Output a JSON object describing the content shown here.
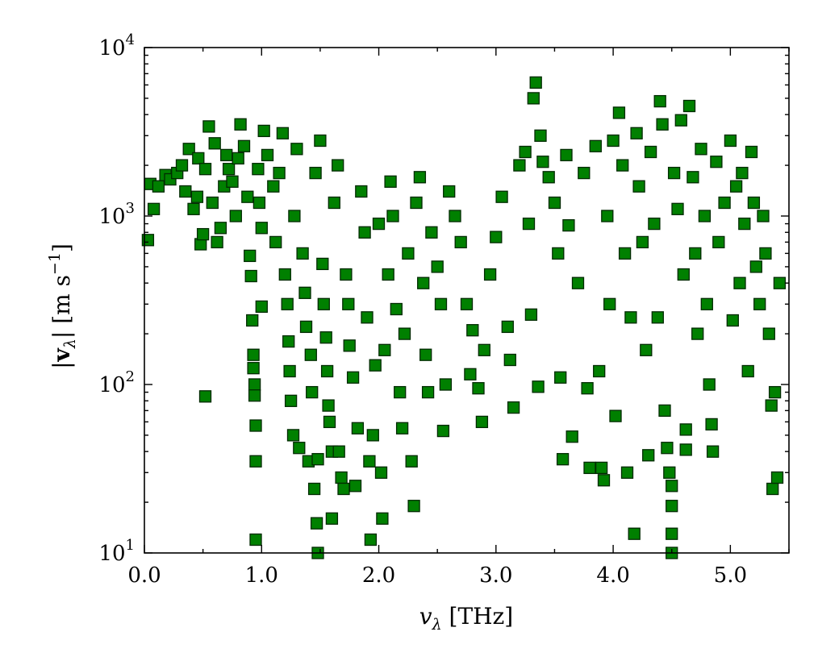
{
  "chart_data": {
    "type": "scatter",
    "title": "",
    "xlabel": {
      "main": "v",
      "sub": "λ",
      "unit": " [THz]"
    },
    "ylabel": {
      "open": "|",
      "main": "v",
      "sub": "λ",
      "close": "| [m s",
      "sup": "−1",
      "end": "]"
    },
    "xlim": [
      0.0,
      5.5
    ],
    "ylim": [
      10,
      10000
    ],
    "yscale": "log",
    "grid": false,
    "legend": "none",
    "marker": "square",
    "marker_color": "#008000",
    "marker_edge_color": "#002a00",
    "x_ticks": [
      {
        "value": 0.0,
        "label": "0.0"
      },
      {
        "value": 1.0,
        "label": "1.0"
      },
      {
        "value": 2.0,
        "label": "2.0"
      },
      {
        "value": 3.0,
        "label": "3.0"
      },
      {
        "value": 4.0,
        "label": "4.0"
      },
      {
        "value": 5.0,
        "label": "5.0"
      }
    ],
    "y_ticks": [
      {
        "value": 10,
        "base": "10",
        "exp": "1"
      },
      {
        "value": 100,
        "base": "10",
        "exp": "2"
      },
      {
        "value": 1000,
        "base": "10",
        "exp": "3"
      },
      {
        "value": 10000,
        "base": "10",
        "exp": "4"
      }
    ],
    "series": [
      {
        "values": [
          [
            0.03,
            720
          ],
          [
            0.08,
            1100
          ],
          [
            0.05,
            1550
          ],
          [
            0.12,
            1500
          ],
          [
            0.18,
            1750
          ],
          [
            0.22,
            1650
          ],
          [
            0.28,
            1800
          ],
          [
            0.32,
            2000
          ],
          [
            0.35,
            1400
          ],
          [
            0.38,
            2500
          ],
          [
            0.42,
            1100
          ],
          [
            0.45,
            1300
          ],
          [
            0.46,
            2200
          ],
          [
            0.48,
            680
          ],
          [
            0.5,
            780
          ],
          [
            0.52,
            1900
          ],
          [
            0.52,
            85
          ],
          [
            0.55,
            3400
          ],
          [
            0.58,
            1200
          ],
          [
            0.6,
            2700
          ],
          [
            0.62,
            700
          ],
          [
            0.65,
            850
          ],
          [
            0.68,
            1500
          ],
          [
            0.7,
            2300
          ],
          [
            0.72,
            1900
          ],
          [
            0.75,
            1600
          ],
          [
            0.78,
            1000
          ],
          [
            0.8,
            2200
          ],
          [
            0.82,
            3500
          ],
          [
            0.85,
            2600
          ],
          [
            0.88,
            1300
          ],
          [
            0.9,
            580
          ],
          [
            0.91,
            440
          ],
          [
            0.92,
            240
          ],
          [
            0.93,
            150
          ],
          [
            0.93,
            125
          ],
          [
            0.94,
            100
          ],
          [
            0.94,
            86
          ],
          [
            0.95,
            57
          ],
          [
            0.95,
            35
          ],
          [
            0.95,
            12
          ],
          [
            0.97,
            1900
          ],
          [
            0.98,
            1200
          ],
          [
            1.0,
            290
          ],
          [
            1.0,
            850
          ],
          [
            1.02,
            3200
          ],
          [
            1.05,
            2300
          ],
          [
            1.1,
            1500
          ],
          [
            1.12,
            700
          ],
          [
            1.15,
            1800
          ],
          [
            1.18,
            3100
          ],
          [
            1.2,
            450
          ],
          [
            1.22,
            300
          ],
          [
            1.23,
            180
          ],
          [
            1.24,
            120
          ],
          [
            1.25,
            80
          ],
          [
            1.27,
            50
          ],
          [
            1.28,
            1000
          ],
          [
            1.3,
            2500
          ],
          [
            1.32,
            42
          ],
          [
            1.35,
            600
          ],
          [
            1.37,
            350
          ],
          [
            1.38,
            220
          ],
          [
            1.4,
            35
          ],
          [
            1.42,
            150
          ],
          [
            1.43,
            90
          ],
          [
            1.45,
            24
          ],
          [
            1.46,
            1800
          ],
          [
            1.47,
            15
          ],
          [
            1.48,
            36
          ],
          [
            1.48,
            10
          ],
          [
            1.5,
            2800
          ],
          [
            1.52,
            520
          ],
          [
            1.53,
            300
          ],
          [
            1.55,
            190
          ],
          [
            1.56,
            120
          ],
          [
            1.57,
            75
          ],
          [
            1.58,
            60
          ],
          [
            1.6,
            40
          ],
          [
            1.6,
            16
          ],
          [
            1.62,
            1200
          ],
          [
            1.65,
            2000
          ],
          [
            1.66,
            40
          ],
          [
            1.68,
            28
          ],
          [
            1.7,
            24
          ],
          [
            1.72,
            450
          ],
          [
            1.74,
            300
          ],
          [
            1.75,
            170
          ],
          [
            1.78,
            110
          ],
          [
            1.8,
            25
          ],
          [
            1.82,
            55
          ],
          [
            1.85,
            1400
          ],
          [
            1.88,
            800
          ],
          [
            1.9,
            250
          ],
          [
            1.92,
            35
          ],
          [
            1.93,
            12
          ],
          [
            1.95,
            50
          ],
          [
            1.97,
            130
          ],
          [
            2.0,
            900
          ],
          [
            2.02,
            30
          ],
          [
            2.03,
            16
          ],
          [
            2.05,
            160
          ],
          [
            2.08,
            450
          ],
          [
            2.1,
            1600
          ],
          [
            2.12,
            1000
          ],
          [
            2.15,
            280
          ],
          [
            2.18,
            90
          ],
          [
            2.2,
            55
          ],
          [
            2.22,
            200
          ],
          [
            2.25,
            600
          ],
          [
            2.28,
            35
          ],
          [
            2.3,
            19
          ],
          [
            2.32,
            1200
          ],
          [
            2.35,
            1700
          ],
          [
            2.38,
            400
          ],
          [
            2.4,
            150
          ],
          [
            2.42,
            90
          ],
          [
            2.45,
            800
          ],
          [
            2.5,
            500
          ],
          [
            2.53,
            300
          ],
          [
            2.55,
            53
          ],
          [
            2.57,
            100
          ],
          [
            2.6,
            1400
          ],
          [
            2.65,
            1000
          ],
          [
            2.7,
            700
          ],
          [
            2.75,
            300
          ],
          [
            2.78,
            115
          ],
          [
            2.8,
            210
          ],
          [
            2.85,
            95
          ],
          [
            2.88,
            60
          ],
          [
            2.9,
            160
          ],
          [
            2.95,
            450
          ],
          [
            3.0,
            750
          ],
          [
            3.05,
            1300
          ],
          [
            3.1,
            220
          ],
          [
            3.12,
            140
          ],
          [
            3.15,
            73
          ],
          [
            3.2,
            2000
          ],
          [
            3.25,
            2400
          ],
          [
            3.28,
            900
          ],
          [
            3.3,
            260
          ],
          [
            3.32,
            5000
          ],
          [
            3.34,
            6200
          ],
          [
            3.36,
            97
          ],
          [
            3.38,
            3000
          ],
          [
            3.4,
            2100
          ],
          [
            3.45,
            1700
          ],
          [
            3.5,
            1200
          ],
          [
            3.53,
            600
          ],
          [
            3.55,
            110
          ],
          [
            3.57,
            36
          ],
          [
            3.6,
            2300
          ],
          [
            3.62,
            880
          ],
          [
            3.65,
            49
          ],
          [
            3.7,
            400
          ],
          [
            3.75,
            1800
          ],
          [
            3.78,
            95
          ],
          [
            3.8,
            32
          ],
          [
            3.85,
            2600
          ],
          [
            3.88,
            120
          ],
          [
            3.9,
            32
          ],
          [
            3.92,
            27
          ],
          [
            3.95,
            1000
          ],
          [
            3.97,
            300
          ],
          [
            4.0,
            2800
          ],
          [
            4.02,
            65
          ],
          [
            4.05,
            4100
          ],
          [
            4.08,
            2000
          ],
          [
            4.1,
            600
          ],
          [
            4.12,
            30
          ],
          [
            4.15,
            250
          ],
          [
            4.18,
            13
          ],
          [
            4.2,
            3100
          ],
          [
            4.22,
            1500
          ],
          [
            4.25,
            700
          ],
          [
            4.28,
            160
          ],
          [
            4.3,
            38
          ],
          [
            4.32,
            2400
          ],
          [
            4.35,
            900
          ],
          [
            4.38,
            250
          ],
          [
            4.4,
            4800
          ],
          [
            4.42,
            3500
          ],
          [
            4.44,
            70
          ],
          [
            4.46,
            42
          ],
          [
            4.48,
            30
          ],
          [
            4.5,
            25
          ],
          [
            4.5,
            19
          ],
          [
            4.5,
            13
          ],
          [
            4.5,
            10
          ],
          [
            4.52,
            1800
          ],
          [
            4.55,
            1100
          ],
          [
            4.58,
            3700
          ],
          [
            4.6,
            450
          ],
          [
            4.62,
            54
          ],
          [
            4.62,
            41
          ],
          [
            4.65,
            4500
          ],
          [
            4.68,
            1700
          ],
          [
            4.7,
            600
          ],
          [
            4.72,
            200
          ],
          [
            4.75,
            2500
          ],
          [
            4.78,
            1000
          ],
          [
            4.8,
            300
          ],
          [
            4.82,
            100
          ],
          [
            4.84,
            58
          ],
          [
            4.85,
            40
          ],
          [
            4.88,
            2100
          ],
          [
            4.9,
            700
          ],
          [
            4.95,
            1200
          ],
          [
            5.0,
            2800
          ],
          [
            5.02,
            240
          ],
          [
            5.05,
            1500
          ],
          [
            5.08,
            400
          ],
          [
            5.1,
            1800
          ],
          [
            5.12,
            900
          ],
          [
            5.15,
            120
          ],
          [
            5.18,
            2400
          ],
          [
            5.2,
            1200
          ],
          [
            5.22,
            500
          ],
          [
            5.25,
            300
          ],
          [
            5.28,
            1000
          ],
          [
            5.3,
            600
          ],
          [
            5.33,
            200
          ],
          [
            5.35,
            75
          ],
          [
            5.36,
            24
          ],
          [
            5.38,
            90
          ],
          [
            5.4,
            28
          ],
          [
            5.42,
            400
          ]
        ]
      }
    ]
  }
}
